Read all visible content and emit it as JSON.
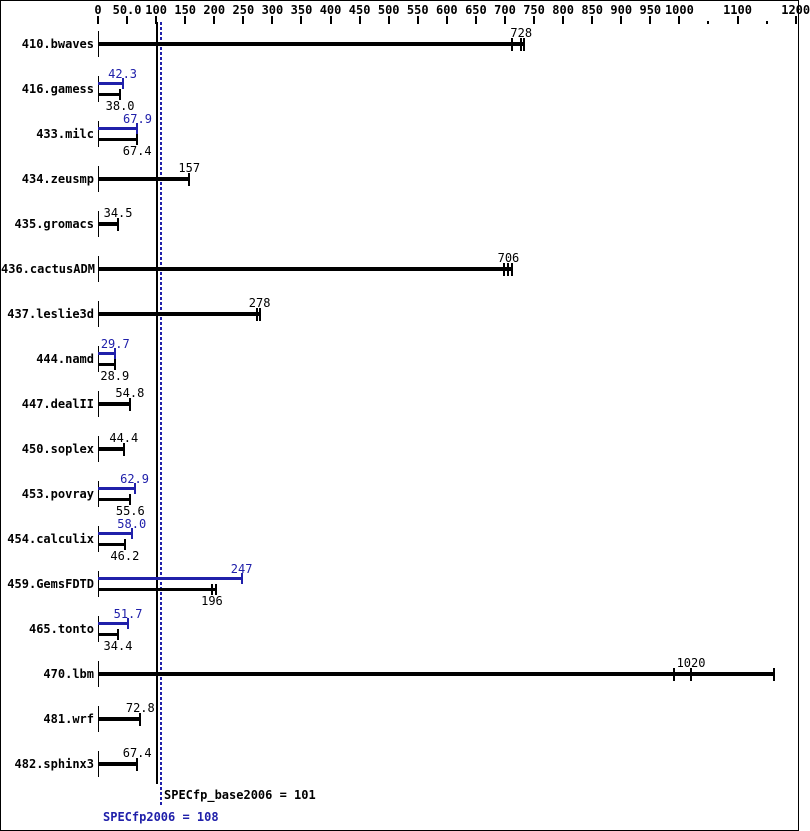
{
  "chart_data": {
    "type": "bar",
    "orientation": "horizontal",
    "title": "",
    "xlabel": "",
    "ylabel": "",
    "xlim": [
      0,
      1200
    ],
    "grid": false,
    "colors": {
      "base_bar": "#000000",
      "peak_bar": "#2020aa",
      "background": "#ffffff",
      "border": "#000000"
    },
    "axis_ticks": [
      {
        "v": 0,
        "label": "0"
      },
      {
        "v": 50,
        "label": "50.0"
      },
      {
        "v": 100,
        "label": "100"
      },
      {
        "v": 150,
        "label": "150"
      },
      {
        "v": 200,
        "label": "200"
      },
      {
        "v": 250,
        "label": "250"
      },
      {
        "v": 300,
        "label": "300"
      },
      {
        "v": 350,
        "label": "350"
      },
      {
        "v": 400,
        "label": "400"
      },
      {
        "v": 450,
        "label": "450"
      },
      {
        "v": 500,
        "label": "500"
      },
      {
        "v": 550,
        "label": "550"
      },
      {
        "v": 600,
        "label": "600"
      },
      {
        "v": 650,
        "label": "650"
      },
      {
        "v": 700,
        "label": "700"
      },
      {
        "v": 750,
        "label": "750"
      },
      {
        "v": 800,
        "label": "800"
      },
      {
        "v": 850,
        "label": "850"
      },
      {
        "v": 900,
        "label": "900"
      },
      {
        "v": 950,
        "label": "950"
      },
      {
        "v": 1000,
        "label": "1000"
      },
      {
        "v": 1050,
        "label": null
      },
      {
        "v": 1100,
        "label": "1100"
      },
      {
        "v": 1150,
        "label": null
      },
      {
        "v": 1200,
        "label": "1200"
      }
    ],
    "reference_lines": [
      {
        "name": "base",
        "value": 101,
        "style": "solid",
        "color": "#000000"
      },
      {
        "name": "peak",
        "value": 108,
        "style": "dotted",
        "color": "#2020aa"
      }
    ],
    "benchmarks": [
      {
        "name": "410.bwaves",
        "base": 728,
        "base_label": "728",
        "peak": null,
        "peak_label": null,
        "base_runs": [
          712,
          728,
          732
        ]
      },
      {
        "name": "416.gamess",
        "base": 38.0,
        "base_label": "38.0",
        "peak": 42.3,
        "peak_label": "42.3"
      },
      {
        "name": "433.milc",
        "base": 67.4,
        "base_label": "67.4",
        "peak": 67.9,
        "peak_label": "67.9"
      },
      {
        "name": "434.zeusmp",
        "base": 157,
        "base_label": "157",
        "peak": null,
        "peak_label": null
      },
      {
        "name": "435.gromacs",
        "base": 34.5,
        "base_label": "34.5",
        "peak": null,
        "peak_label": null
      },
      {
        "name": "436.cactusADM",
        "base": 706,
        "base_label": "706",
        "peak": null,
        "peak_label": null,
        "base_runs": [
          698,
          706,
          712
        ]
      },
      {
        "name": "437.leslie3d",
        "base": 278,
        "base_label": "278",
        "peak": null,
        "peak_label": null,
        "base_runs": [
          274,
          278
        ]
      },
      {
        "name": "444.namd",
        "base": 28.9,
        "base_label": "28.9",
        "peak": 29.7,
        "peak_label": "29.7"
      },
      {
        "name": "447.dealII",
        "base": 54.8,
        "base_label": "54.8",
        "peak": null,
        "peak_label": null
      },
      {
        "name": "450.soplex",
        "base": 44.4,
        "base_label": "44.4",
        "peak": null,
        "peak_label": null
      },
      {
        "name": "453.povray",
        "base": 55.6,
        "base_label": "55.6",
        "peak": 62.9,
        "peak_label": "62.9"
      },
      {
        "name": "454.calculix",
        "base": 46.2,
        "base_label": "46.2",
        "peak": 58.0,
        "peak_label": "58.0"
      },
      {
        "name": "459.GemsFDTD",
        "base": 196,
        "base_label": "196",
        "peak": 247,
        "peak_label": "247",
        "base_runs": [
          196,
          203
        ]
      },
      {
        "name": "465.tonto",
        "base": 34.4,
        "base_label": "34.4",
        "peak": 51.7,
        "peak_label": "51.7"
      },
      {
        "name": "470.lbm",
        "base": 1020,
        "base_label": "1020",
        "peak": null,
        "peak_label": null,
        "base_runs": [
          991,
          1020,
          1163
        ]
      },
      {
        "name": "481.wrf",
        "base": 72.8,
        "base_label": "72.8",
        "peak": null,
        "peak_label": null
      },
      {
        "name": "482.sphinx3",
        "base": 67.4,
        "base_label": "67.4",
        "peak": null,
        "peak_label": null
      }
    ],
    "footer": {
      "base_note": "SPECfp_base2006 = 101",
      "peak_note": "SPECfp2006 = 108"
    }
  }
}
